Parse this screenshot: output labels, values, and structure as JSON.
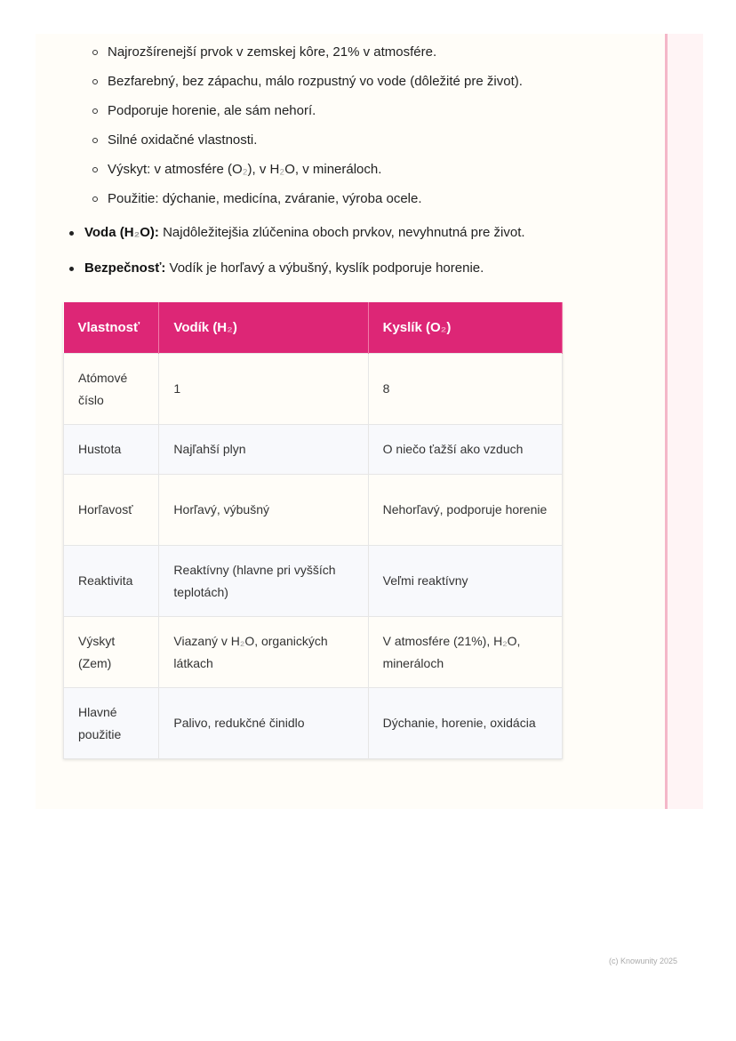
{
  "sub_items": [
    "Najrozšírenejší prvok v zemskej kôre, 21% v atmosfére.",
    "Bezfarebný, bez zápachu, málo rozpustný vo vode (dôležité pre život).",
    "Podporuje horenie, ale sám nehorí.",
    "Silné oxidačné vlastnosti.",
    [
      "Výskyt: v atmosfére (O",
      "₂",
      "), v H",
      "₂",
      "O, v mineráloch."
    ],
    "Použitie: dýchanie, medicína, zváranie, výroba ocele."
  ],
  "main_items": [
    {
      "bold": [
        "Voda (H",
        "₂",
        "O):"
      ],
      "text": " Najdôležitejšia zlúčenina oboch prvkov, nevyhnutná pre život."
    },
    {
      "bold": [
        "Bezpečnosť:"
      ],
      "text": " Vodík je horľavý a výbušný, kyslík podporuje horenie."
    }
  ],
  "table": {
    "headers": [
      [
        "Vlastnosť"
      ],
      [
        "Vodík (H",
        "₂",
        ")"
      ],
      [
        "Kyslík (O",
        "₂",
        ")"
      ]
    ],
    "rows": [
      [
        [
          "Atómové číslo"
        ],
        [
          "1"
        ],
        [
          "8"
        ]
      ],
      [
        [
          "Hustota"
        ],
        [
          "Najľahší plyn"
        ],
        [
          "O niečo ťažší ako vzduch"
        ]
      ],
      [
        [
          "Horľavosť"
        ],
        [
          "Horľavý, výbušný"
        ],
        [
          "Nehorľavý, podporuje horenie"
        ]
      ],
      [
        [
          "Reaktivita"
        ],
        [
          "Reaktívny (hlavne pri vyšších teplotách)"
        ],
        [
          "Veľmi reaktívny"
        ]
      ],
      [
        [
          "Výskyt (Zem)"
        ],
        [
          "Viazaný v H",
          "₂",
          "O, organických látkach"
        ],
        [
          "V atmosfére (21%), H",
          "₂",
          "O, mineráloch"
        ]
      ],
      [
        [
          "Hlavné použitie"
        ],
        [
          "Palivo, redukčné činidlo"
        ],
        [
          "Dýchanie, horenie, oxidácia"
        ]
      ]
    ]
  },
  "footer": "(c) Knowunity 2025",
  "colors": {
    "header": "#dd2676",
    "accent_bar": "#f4b7c8"
  }
}
